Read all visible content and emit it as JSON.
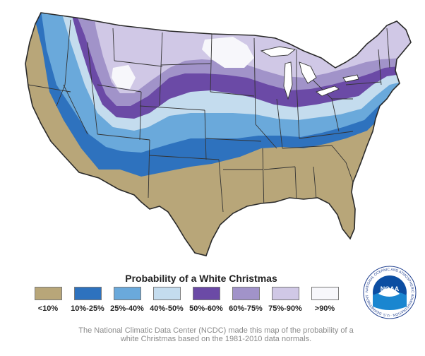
{
  "legend": {
    "title": "Probability of a White Christmas",
    "items": [
      {
        "label": "<10%",
        "color": "#b8a679"
      },
      {
        "label": "10%-25%",
        "color": "#2e72be"
      },
      {
        "label": "25%-40%",
        "color": "#6aa9db"
      },
      {
        "label": "40%-50%",
        "color": "#c4dcee"
      },
      {
        "label": "50%-60%",
        "color": "#6b4aa6"
      },
      {
        "label": "60%-75%",
        "color": "#a193c9"
      },
      {
        "label": "75%-90%",
        "color": "#d0c8e6"
      },
      {
        "label": ">90%",
        "color": "#f7f7fb"
      }
    ]
  },
  "caption": "The National Climatic Data Center (NCDC) made this map of the probability of a white Christmas based on the 1981-2010 data normals.",
  "logo": {
    "text": "NOAA",
    "ring_text": "NATIONAL OCEANIC AND ATMOSPHERIC ADMINISTRATION · U.S. DEPARTMENT OF COMMERCE"
  }
}
